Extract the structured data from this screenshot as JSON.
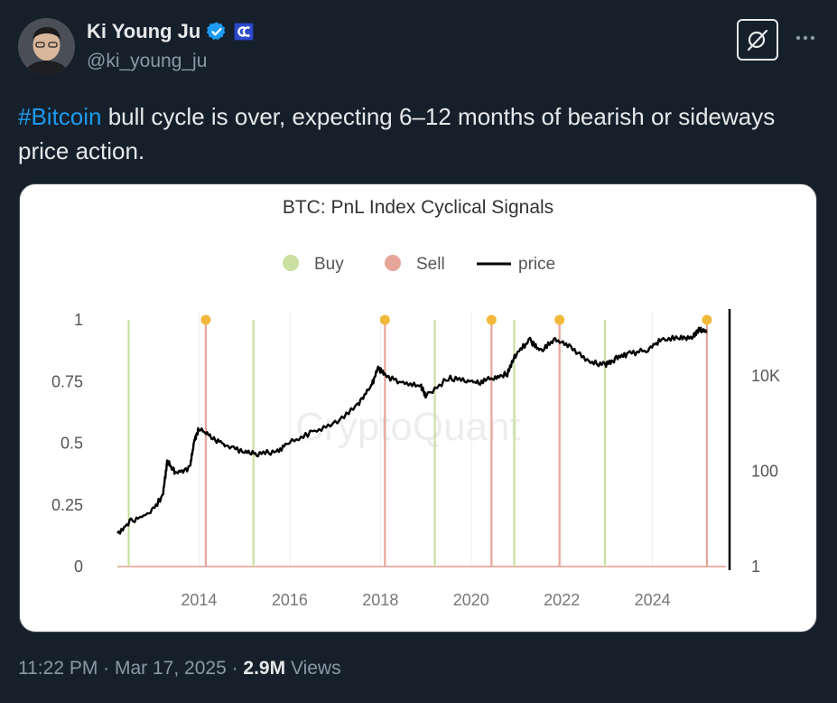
{
  "author": {
    "display_name": "Ki Young Ju",
    "handle": "@ki_young_ju",
    "verified_icon": "verified-badge-icon",
    "affiliate_icon": "cryptoquant-affiliate-icon"
  },
  "tweet": {
    "hashtag": "#Bitcoin",
    "text": " bull cycle is over, expecting 6–12 months of bearish or sideways price action."
  },
  "meta": {
    "time": "11:22 PM",
    "separator1": " · ",
    "date": "Mar 17, 2025",
    "separator2": " · ",
    "views_count": "2.9M",
    "views_label": " Views"
  },
  "colors": {
    "accent": "#1d9bf0",
    "buy": "#c9e0a0",
    "sell": "#e7a59a",
    "price": "#000000",
    "marker": "#f2b83a"
  },
  "chart_data": {
    "type": "line",
    "title": "BTC: PnL Index Cyclical Signals",
    "watermark": "CryptoQuant",
    "legend": [
      {
        "label": "Buy",
        "type": "dot"
      },
      {
        "label": "Sell",
        "type": "dot"
      },
      {
        "label": "price",
        "type": "line"
      }
    ],
    "legend_position": "top-center",
    "x_ticks": [
      "2014",
      "2016",
      "2018",
      "2020",
      "2022",
      "2024"
    ],
    "xlim": [
      2012.2,
      2025.5
    ],
    "y_left_ticks": [
      "1",
      "0.75",
      "0.5",
      "0.25",
      "0"
    ],
    "y_left_range": [
      0,
      1
    ],
    "y_right_ticks": [
      "10K",
      "100",
      "1"
    ],
    "y_right_scale": "log",
    "y_right_range": [
      1,
      150000
    ],
    "buy_signals": [
      2012.45,
      2015.2,
      2019.2,
      2020.95,
      2022.95
    ],
    "sell_signals": [
      2014.15,
      2018.1,
      2020.45,
      2021.95,
      2025.2
    ],
    "signal_markers": [
      2014.15,
      2018.1,
      2020.45,
      2021.95,
      2025.2
    ],
    "series": [
      {
        "name": "price",
        "x": [
          2012.2,
          2012.5,
          2012.9,
          2013.2,
          2013.3,
          2013.5,
          2013.8,
          2013.9,
          2014.0,
          2014.3,
          2014.6,
          2015.0,
          2015.3,
          2015.7,
          2016.0,
          2016.5,
          2017.0,
          2017.5,
          2017.8,
          2017.95,
          2018.1,
          2018.5,
          2018.9,
          2019.0,
          2019.5,
          2019.9,
          2020.2,
          2020.5,
          2020.8,
          2021.0,
          2021.3,
          2021.55,
          2021.85,
          2022.2,
          2022.6,
          2022.95,
          2023.2,
          2023.5,
          2023.9,
          2024.2,
          2024.6,
          2024.9,
          2025.05,
          2025.2
        ],
        "y": [
          5,
          9,
          13,
          30,
          160,
          90,
          120,
          450,
          800,
          500,
          350,
          250,
          230,
          260,
          400,
          650,
          1000,
          2500,
          6000,
          15000,
          10000,
          7000,
          6000,
          3800,
          9000,
          8000,
          7000,
          9500,
          11000,
          30000,
          55000,
          33000,
          60000,
          40000,
          20000,
          17000,
          23000,
          29000,
          35000,
          60000,
          62000,
          68000,
          95000,
          85000
        ]
      }
    ]
  }
}
